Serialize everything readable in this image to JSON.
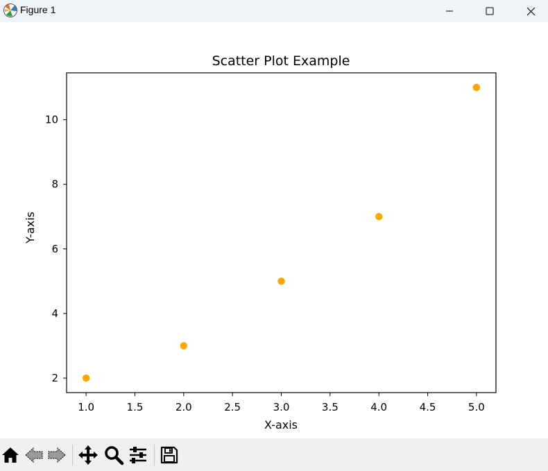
{
  "window": {
    "title": "Figure 1",
    "controls": [
      "minimize",
      "maximize",
      "close"
    ]
  },
  "toolbar": {
    "items": [
      {
        "name": "home",
        "icon": "home-icon"
      },
      {
        "name": "back",
        "icon": "back-arrow-icon"
      },
      {
        "name": "forward",
        "icon": "forward-arrow-icon"
      },
      {
        "name": "pan",
        "icon": "move-icon"
      },
      {
        "name": "zoom",
        "icon": "magnifier-icon"
      },
      {
        "name": "configure-subplots",
        "icon": "sliders-icon"
      },
      {
        "name": "save",
        "icon": "floppy-disk-icon"
      }
    ]
  },
  "chart_data": {
    "type": "scatter",
    "title": "Scatter Plot Example",
    "xlabel": "X-axis",
    "ylabel": "Y-axis",
    "x": [
      1,
      2,
      3,
      4,
      5
    ],
    "y": [
      2,
      3,
      5,
      7,
      11
    ],
    "xlim": [
      0.8,
      5.2
    ],
    "ylim": [
      1.55,
      11.45
    ],
    "xticks": [
      1.0,
      1.5,
      2.0,
      2.5,
      3.0,
      3.5,
      4.0,
      4.5,
      5.0
    ],
    "xtick_labels": [
      "1.0",
      "1.5",
      "2.0",
      "2.5",
      "3.0",
      "3.5",
      "4.0",
      "4.5",
      "5.0"
    ],
    "yticks": [
      2,
      4,
      6,
      8,
      10
    ],
    "ytick_labels": [
      "2",
      "4",
      "6",
      "8",
      "10"
    ],
    "marker_color": "#ffa500",
    "grid": false,
    "legend": null
  }
}
